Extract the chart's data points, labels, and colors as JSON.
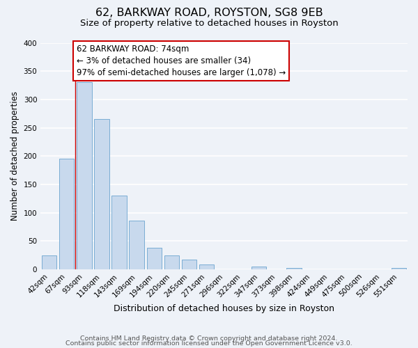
{
  "title1": "62, BARKWAY ROAD, ROYSTON, SG8 9EB",
  "title2": "Size of property relative to detached houses in Royston",
  "xlabel": "Distribution of detached houses by size in Royston",
  "ylabel": "Number of detached properties",
  "bar_labels": [
    "42sqm",
    "67sqm",
    "93sqm",
    "118sqm",
    "143sqm",
    "169sqm",
    "194sqm",
    "220sqm",
    "245sqm",
    "271sqm",
    "296sqm",
    "322sqm",
    "347sqm",
    "373sqm",
    "398sqm",
    "424sqm",
    "449sqm",
    "475sqm",
    "500sqm",
    "526sqm",
    "551sqm"
  ],
  "bar_values": [
    25,
    195,
    330,
    265,
    130,
    86,
    38,
    25,
    17,
    8,
    0,
    0,
    5,
    0,
    3,
    0,
    0,
    0,
    0,
    0,
    2
  ],
  "bar_face_color": "#c8d9ed",
  "bar_edge_color": "#7aadd4",
  "annotation_box_text": "62 BARKWAY ROAD: 74sqm\n← 3% of detached houses are smaller (34)\n97% of semi-detached houses are larger (1,078) →",
  "box_edge_color": "#cc0000",
  "box_face_color": "#ffffff",
  "vline_color": "#cc0000",
  "vline_x": 1.5,
  "ylim": [
    0,
    400
  ],
  "yticks": [
    0,
    50,
    100,
    150,
    200,
    250,
    300,
    350,
    400
  ],
  "footer1": "Contains HM Land Registry data © Crown copyright and database right 2024.",
  "footer2": "Contains public sector information licensed under the Open Government Licence v3.0.",
  "bg_color": "#eef2f8",
  "grid_color": "#ffffff",
  "title1_fontsize": 11.5,
  "title2_fontsize": 9.5,
  "xlabel_fontsize": 9,
  "ylabel_fontsize": 8.5,
  "tick_fontsize": 7.5,
  "annotation_fontsize": 8.5,
  "footer_fontsize": 6.8
}
